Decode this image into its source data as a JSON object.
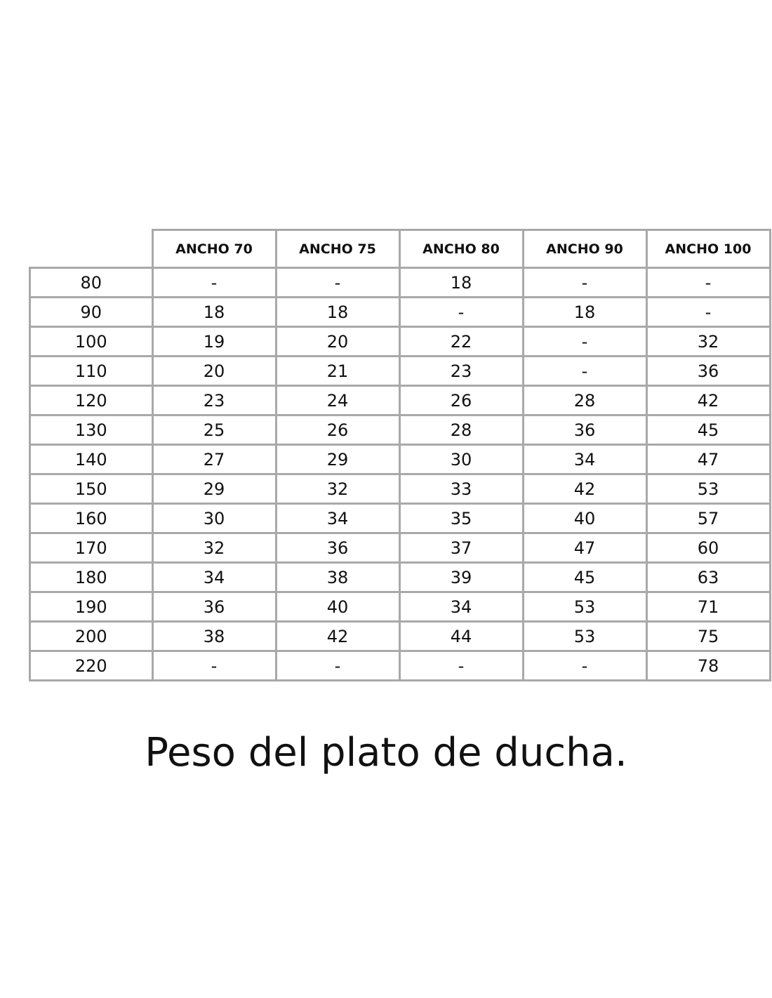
{
  "table": {
    "columns": [
      "ANCHO 70",
      "ANCHO 75",
      "ANCHO 80",
      "ANCHO 90",
      "ANCHO 100"
    ],
    "rows": [
      {
        "label": "80",
        "values": [
          "-",
          "-",
          "18",
          "-",
          "-"
        ]
      },
      {
        "label": "90",
        "values": [
          "18",
          "18",
          "-",
          "18",
          "-"
        ]
      },
      {
        "label": "100",
        "values": [
          "19",
          "20",
          "22",
          "-",
          "32"
        ]
      },
      {
        "label": "110",
        "values": [
          "20",
          "21",
          "23",
          "-",
          "36"
        ]
      },
      {
        "label": "120",
        "values": [
          "23",
          "24",
          "26",
          "28",
          "42"
        ]
      },
      {
        "label": "130",
        "values": [
          "25",
          "26",
          "28",
          "36",
          "45"
        ]
      },
      {
        "label": "140",
        "values": [
          "27",
          "29",
          "30",
          "34",
          "47"
        ]
      },
      {
        "label": "150",
        "values": [
          "29",
          "32",
          "33",
          "42",
          "53"
        ]
      },
      {
        "label": "160",
        "values": [
          "30",
          "34",
          "35",
          "40",
          "57"
        ]
      },
      {
        "label": "170",
        "values": [
          "32",
          "36",
          "37",
          "47",
          "60"
        ]
      },
      {
        "label": "180",
        "values": [
          "34",
          "38",
          "39",
          "45",
          "63"
        ]
      },
      {
        "label": "190",
        "values": [
          "36",
          "40",
          "34",
          "53",
          "71"
        ]
      },
      {
        "label": "200",
        "values": [
          "38",
          "42",
          "44",
          "53",
          "75"
        ]
      },
      {
        "label": "220",
        "values": [
          "-",
          "-",
          "-",
          "-",
          "78"
        ]
      }
    ]
  },
  "caption": "Peso del plato de ducha."
}
